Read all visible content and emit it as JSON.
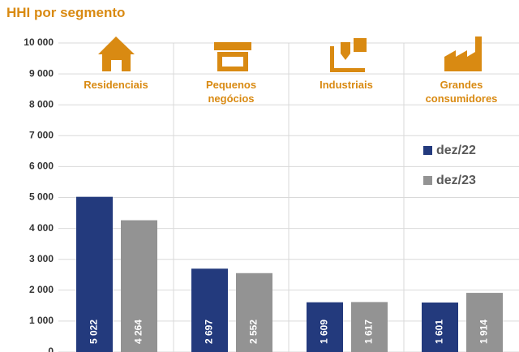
{
  "chart_data": {
    "type": "bar",
    "title": "HHI por segmento",
    "categories": [
      "Residenciais",
      "Pequenos negócios",
      "Industriais",
      "Grandes consumidores"
    ],
    "series": [
      {
        "name": "dez/22",
        "color": "#233a7d",
        "values": [
          5022,
          2697,
          1609,
          1601
        ],
        "value_labels": [
          "5 022",
          "2 697",
          "1 609",
          "1 601"
        ]
      },
      {
        "name": "dez/23",
        "color": "#939393",
        "values": [
          4264,
          2552,
          1617,
          1914
        ],
        "value_labels": [
          "4 264",
          "2 552",
          "1 617",
          "1 914"
        ]
      }
    ],
    "ylim": [
      0,
      10000
    ],
    "yticks": [
      0,
      {
        "value": 1000,
        "label": "1 000"
      },
      {
        "value": 2000,
        "label": "2 000"
      },
      {
        "value": 3000,
        "label": "3 000"
      },
      {
        "value": 4000,
        "label": "4 000"
      },
      {
        "value": 5000,
        "label": "5 000"
      },
      {
        "value": 6000,
        "label": "6 000"
      },
      {
        "value": 7000,
        "label": "7 000"
      },
      {
        "value": 8000,
        "label": "8 000"
      },
      {
        "value": 9000,
        "label": "9 000"
      },
      {
        "value": 10000,
        "label": "10 000"
      }
    ],
    "grid": true,
    "legend": "right"
  }
}
